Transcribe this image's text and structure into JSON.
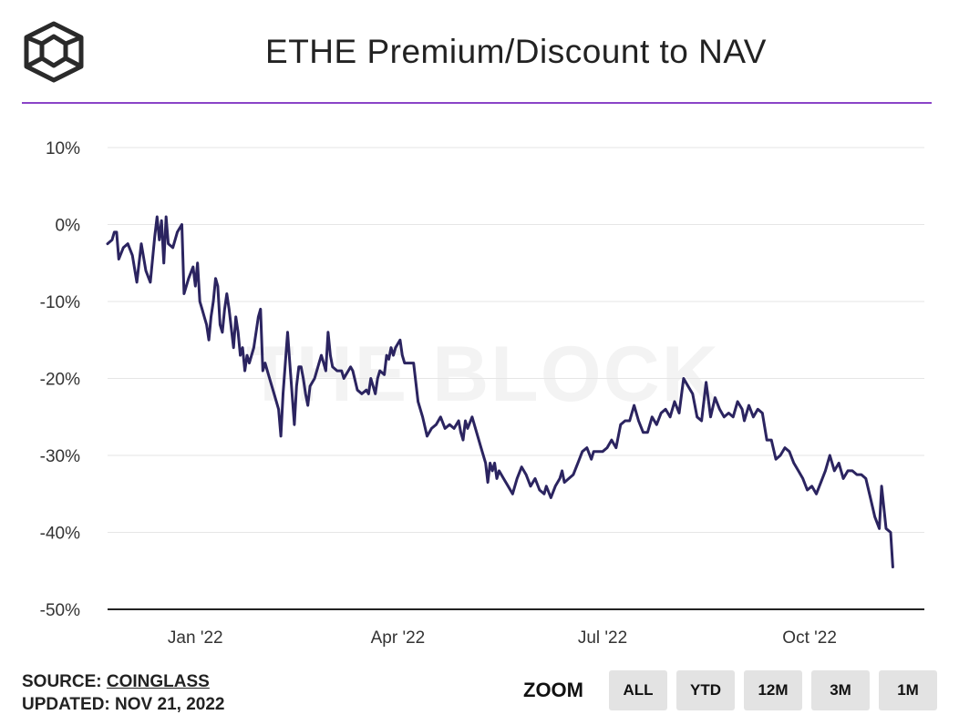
{
  "header": {
    "title": "ETHE Premium/Discount to NAV",
    "logo_icon": "the-block-cube-logo"
  },
  "watermark": "THE BLOCK",
  "footer": {
    "source_label": "SOURCE:",
    "source_name": "COINGLASS",
    "updated_label": "UPDATED:",
    "updated_date": "NOV 21, 2022"
  },
  "zoom": {
    "label": "ZOOM",
    "buttons": [
      "ALL",
      "YTD",
      "12M",
      "3M",
      "1M"
    ]
  },
  "colors": {
    "line": "#2b2460",
    "accent": "#8a44c8",
    "grid": "#e6e6e6"
  },
  "chart_data": {
    "type": "line",
    "title": "ETHE Premium/Discount to NAV",
    "xlabel": "",
    "ylabel": "",
    "x_start": "2021-11-23",
    "x_end": "2022-11-21",
    "ylim": [
      -50,
      10
    ],
    "y_ticks": [
      10,
      0,
      -10,
      -20,
      -30,
      -40,
      -50
    ],
    "y_tick_labels": [
      "10%",
      "0%",
      "-10%",
      "-20%",
      "-30%",
      "-40%",
      "-50%"
    ],
    "x_ticks": [
      {
        "date": "2022-01-01",
        "label": "Jan '22"
      },
      {
        "date": "2022-04-01",
        "label": "Apr '22"
      },
      {
        "date": "2022-07-01",
        "label": "Jul '22"
      },
      {
        "date": "2022-10-01",
        "label": "Oct '22"
      }
    ],
    "series": [
      {
        "name": "ETHE Premium/Discount",
        "points": [
          [
            "2021-11-23",
            -2.5
          ],
          [
            "2021-11-25",
            -2
          ],
          [
            "2021-11-26",
            -1
          ],
          [
            "2021-11-27",
            -1
          ],
          [
            "2021-11-28",
            -4.5
          ],
          [
            "2021-11-30",
            -3
          ],
          [
            "2021-12-02",
            -2.5
          ],
          [
            "2021-12-04",
            -4
          ],
          [
            "2021-12-06",
            -7.5
          ],
          [
            "2021-12-08",
            -2.5
          ],
          [
            "2021-12-10",
            -6
          ],
          [
            "2021-12-12",
            -7.5
          ],
          [
            "2021-12-14",
            -1.5
          ],
          [
            "2021-12-15",
            1
          ],
          [
            "2021-12-16",
            -2
          ],
          [
            "2021-12-17",
            0.5
          ],
          [
            "2021-12-18",
            -5
          ],
          [
            "2021-12-19",
            1
          ],
          [
            "2021-12-20",
            -2.5
          ],
          [
            "2021-12-22",
            -3
          ],
          [
            "2021-12-24",
            -1
          ],
          [
            "2021-12-26",
            0
          ],
          [
            "2021-12-27",
            -9
          ],
          [
            "2021-12-29",
            -7
          ],
          [
            "2021-12-31",
            -5.5
          ],
          [
            "2022-01-01",
            -8
          ],
          [
            "2022-01-02",
            -5
          ],
          [
            "2022-01-03",
            -10
          ],
          [
            "2022-01-04",
            -11
          ],
          [
            "2022-01-05",
            -12
          ],
          [
            "2022-01-06",
            -13
          ],
          [
            "2022-01-07",
            -15
          ],
          [
            "2022-01-08",
            -12
          ],
          [
            "2022-01-09",
            -10
          ],
          [
            "2022-01-10",
            -7
          ],
          [
            "2022-01-11",
            -8
          ],
          [
            "2022-01-12",
            -13
          ],
          [
            "2022-01-13",
            -14
          ],
          [
            "2022-01-14",
            -11
          ],
          [
            "2022-01-15",
            -9
          ],
          [
            "2022-01-16",
            -11
          ],
          [
            "2022-01-18",
            -16
          ],
          [
            "2022-01-19",
            -12
          ],
          [
            "2022-01-20",
            -14
          ],
          [
            "2022-01-21",
            -17
          ],
          [
            "2022-01-22",
            -16
          ],
          [
            "2022-01-23",
            -19
          ],
          [
            "2022-01-24",
            -17
          ],
          [
            "2022-01-25",
            -18
          ],
          [
            "2022-01-27",
            -16
          ],
          [
            "2022-01-28",
            -14
          ],
          [
            "2022-01-29",
            -12
          ],
          [
            "2022-01-30",
            -11
          ],
          [
            "2022-01-31",
            -19
          ],
          [
            "2022-02-01",
            -18
          ],
          [
            "2022-02-03",
            -20
          ],
          [
            "2022-02-05",
            -22
          ],
          [
            "2022-02-07",
            -24
          ],
          [
            "2022-02-08",
            -27.5
          ],
          [
            "2022-02-09",
            -22
          ],
          [
            "2022-02-10",
            -18
          ],
          [
            "2022-02-11",
            -14
          ],
          [
            "2022-02-12",
            -18
          ],
          [
            "2022-02-13",
            -22
          ],
          [
            "2022-02-14",
            -26
          ],
          [
            "2022-02-15",
            -21
          ],
          [
            "2022-02-16",
            -18.5
          ],
          [
            "2022-02-17",
            -18.5
          ],
          [
            "2022-02-18",
            -20
          ],
          [
            "2022-02-19",
            -22
          ],
          [
            "2022-02-20",
            -23.5
          ],
          [
            "2022-02-21",
            -21
          ],
          [
            "2022-02-23",
            -20
          ],
          [
            "2022-02-25",
            -18
          ],
          [
            "2022-02-26",
            -17
          ],
          [
            "2022-02-27",
            -18
          ],
          [
            "2022-02-28",
            -19
          ],
          [
            "2022-03-01",
            -14
          ],
          [
            "2022-03-02",
            -17
          ],
          [
            "2022-03-03",
            -18.5
          ],
          [
            "2022-03-05",
            -19
          ],
          [
            "2022-03-07",
            -19
          ],
          [
            "2022-03-08",
            -20
          ],
          [
            "2022-03-09",
            -19.5
          ],
          [
            "2022-03-10",
            -19
          ],
          [
            "2022-03-11",
            -18.5
          ],
          [
            "2022-03-12",
            -19
          ],
          [
            "2022-03-14",
            -21.5
          ],
          [
            "2022-03-16",
            -22
          ],
          [
            "2022-03-18",
            -21.5
          ],
          [
            "2022-03-19",
            -22
          ],
          [
            "2022-03-20",
            -20
          ],
          [
            "2022-03-21",
            -21
          ],
          [
            "2022-03-22",
            -22
          ],
          [
            "2022-03-23",
            -20
          ],
          [
            "2022-03-24",
            -19
          ],
          [
            "2022-03-26",
            -19.5
          ],
          [
            "2022-03-27",
            -17
          ],
          [
            "2022-03-28",
            -17.5
          ],
          [
            "2022-03-29",
            -16
          ],
          [
            "2022-03-30",
            -17
          ],
          [
            "2022-03-31",
            -16
          ],
          [
            "2022-04-02",
            -15
          ],
          [
            "2022-04-03",
            -17
          ],
          [
            "2022-04-04",
            -18
          ],
          [
            "2022-04-05",
            -18
          ],
          [
            "2022-04-08",
            -18
          ],
          [
            "2022-04-10",
            -23
          ],
          [
            "2022-04-12",
            -25
          ],
          [
            "2022-04-14",
            -27.5
          ],
          [
            "2022-04-16",
            -26.5
          ],
          [
            "2022-04-18",
            -26
          ],
          [
            "2022-04-20",
            -25
          ],
          [
            "2022-04-22",
            -26.5
          ],
          [
            "2022-04-24",
            -26
          ],
          [
            "2022-04-26",
            -26.5
          ],
          [
            "2022-04-28",
            -25.5
          ],
          [
            "2022-04-29",
            -27
          ],
          [
            "2022-04-30",
            -28
          ],
          [
            "2022-05-01",
            -25.5
          ],
          [
            "2022-05-02",
            -26.5
          ],
          [
            "2022-05-04",
            -25
          ],
          [
            "2022-05-06",
            -27
          ],
          [
            "2022-05-08",
            -29
          ],
          [
            "2022-05-10",
            -31
          ],
          [
            "2022-05-11",
            -33.5
          ],
          [
            "2022-05-12",
            -31
          ],
          [
            "2022-05-13",
            -32
          ],
          [
            "2022-05-14",
            -31
          ],
          [
            "2022-05-15",
            -33
          ],
          [
            "2022-05-16",
            -32
          ],
          [
            "2022-05-18",
            -33
          ],
          [
            "2022-05-20",
            -34
          ],
          [
            "2022-05-22",
            -35
          ],
          [
            "2022-05-24",
            -33
          ],
          [
            "2022-05-26",
            -31.5
          ],
          [
            "2022-05-28",
            -32.5
          ],
          [
            "2022-05-30",
            -34
          ],
          [
            "2022-06-01",
            -33
          ],
          [
            "2022-06-03",
            -34.5
          ],
          [
            "2022-06-05",
            -35
          ],
          [
            "2022-06-06",
            -34
          ],
          [
            "2022-06-08",
            -35.5
          ],
          [
            "2022-06-10",
            -34
          ],
          [
            "2022-06-12",
            -33
          ],
          [
            "2022-06-13",
            -32
          ],
          [
            "2022-06-14",
            -33.5
          ],
          [
            "2022-06-16",
            -33
          ],
          [
            "2022-06-18",
            -32.5
          ],
          [
            "2022-06-20",
            -31
          ],
          [
            "2022-06-22",
            -29.5
          ],
          [
            "2022-06-24",
            -29
          ],
          [
            "2022-06-26",
            -30.5
          ],
          [
            "2022-06-27",
            -29.5
          ],
          [
            "2022-06-29",
            -29.5
          ],
          [
            "2022-07-01",
            -29.5
          ],
          [
            "2022-07-03",
            -29
          ],
          [
            "2022-07-05",
            -28
          ],
          [
            "2022-07-07",
            -29
          ],
          [
            "2022-07-09",
            -26
          ],
          [
            "2022-07-11",
            -25.5
          ],
          [
            "2022-07-13",
            -25.5
          ],
          [
            "2022-07-15",
            -23.5
          ],
          [
            "2022-07-17",
            -25.5
          ],
          [
            "2022-07-19",
            -27
          ],
          [
            "2022-07-21",
            -27
          ],
          [
            "2022-07-23",
            -25
          ],
          [
            "2022-07-25",
            -26
          ],
          [
            "2022-07-27",
            -24.5
          ],
          [
            "2022-07-29",
            -24
          ],
          [
            "2022-07-31",
            -25
          ],
          [
            "2022-08-02",
            -23
          ],
          [
            "2022-08-04",
            -24.5
          ],
          [
            "2022-08-06",
            -20
          ],
          [
            "2022-08-08",
            -21
          ],
          [
            "2022-08-10",
            -22
          ],
          [
            "2022-08-12",
            -25
          ],
          [
            "2022-08-14",
            -25.5
          ],
          [
            "2022-08-16",
            -20.5
          ],
          [
            "2022-08-18",
            -25
          ],
          [
            "2022-08-20",
            -22.5
          ],
          [
            "2022-08-22",
            -24
          ],
          [
            "2022-08-24",
            -25
          ],
          [
            "2022-08-26",
            -24.5
          ],
          [
            "2022-08-28",
            -25
          ],
          [
            "2022-08-30",
            -23
          ],
          [
            "2022-09-01",
            -24
          ],
          [
            "2022-09-02",
            -25.5
          ],
          [
            "2022-09-04",
            -23.5
          ],
          [
            "2022-09-06",
            -25
          ],
          [
            "2022-09-08",
            -24
          ],
          [
            "2022-09-10",
            -24.5
          ],
          [
            "2022-09-12",
            -28
          ],
          [
            "2022-09-14",
            -28
          ],
          [
            "2022-09-16",
            -30.5
          ],
          [
            "2022-09-18",
            -30
          ],
          [
            "2022-09-20",
            -29
          ],
          [
            "2022-09-22",
            -29.5
          ],
          [
            "2022-09-24",
            -31
          ],
          [
            "2022-09-26",
            -32
          ],
          [
            "2022-09-28",
            -33
          ],
          [
            "2022-09-30",
            -34.5
          ],
          [
            "2022-10-02",
            -34
          ],
          [
            "2022-10-04",
            -35
          ],
          [
            "2022-10-06",
            -33.5
          ],
          [
            "2022-10-08",
            -32
          ],
          [
            "2022-10-10",
            -30
          ],
          [
            "2022-10-12",
            -32
          ],
          [
            "2022-10-14",
            -31
          ],
          [
            "2022-10-16",
            -33
          ],
          [
            "2022-10-18",
            -32
          ],
          [
            "2022-10-20",
            -32
          ],
          [
            "2022-10-22",
            -32.5
          ],
          [
            "2022-10-24",
            -32.5
          ],
          [
            "2022-10-26",
            -33
          ],
          [
            "2022-10-28",
            -35.5
          ],
          [
            "2022-10-30",
            -38
          ],
          [
            "2022-11-01",
            -39.5
          ],
          [
            "2022-11-02",
            -34
          ],
          [
            "2022-11-04",
            -39.5
          ],
          [
            "2022-11-06",
            -40
          ],
          [
            "2022-11-07",
            -44.5
          ]
        ]
      }
    ]
  }
}
